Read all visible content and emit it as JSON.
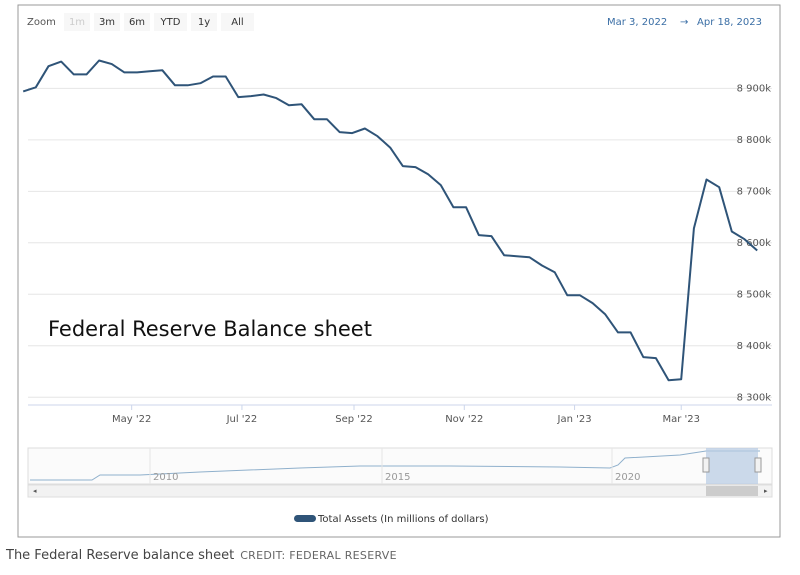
{
  "chart_data": {
    "type": "line",
    "annotation": "Federal Reserve Balance sheet",
    "zoom_label": "Zoom",
    "zoom_buttons": [
      "1m",
      "3m",
      "6m",
      "YTD",
      "1y",
      "All"
    ],
    "range_from": "Mar 3, 2022",
    "range_to": "Apr 18, 2023",
    "x": [
      "2022-03-02",
      "2022-03-09",
      "2022-03-16",
      "2022-03-23",
      "2022-03-30",
      "2022-04-06",
      "2022-04-13",
      "2022-04-20",
      "2022-04-27",
      "2022-05-04",
      "2022-05-11",
      "2022-05-18",
      "2022-05-25",
      "2022-06-01",
      "2022-06-08",
      "2022-06-15",
      "2022-06-22",
      "2022-06-29",
      "2022-07-06",
      "2022-07-13",
      "2022-07-20",
      "2022-07-27",
      "2022-08-03",
      "2022-08-10",
      "2022-08-17",
      "2022-08-24",
      "2022-08-31",
      "2022-09-07",
      "2022-09-14",
      "2022-09-21",
      "2022-09-28",
      "2022-10-05",
      "2022-10-12",
      "2022-10-19",
      "2022-10-26",
      "2022-11-02",
      "2022-11-09",
      "2022-11-16",
      "2022-11-23",
      "2022-11-30",
      "2022-12-07",
      "2022-12-14",
      "2022-12-21",
      "2022-12-28",
      "2023-01-04",
      "2023-01-11",
      "2023-01-18",
      "2023-01-25",
      "2023-02-01",
      "2023-02-08",
      "2023-02-15",
      "2023-02-22",
      "2023-03-01",
      "2023-03-08",
      "2023-03-15",
      "2023-03-22",
      "2023-03-29",
      "2023-04-05",
      "2023-04-12"
    ],
    "series": [
      {
        "name": "Total Assets (In millions of dollars)",
        "color": "#2f5478",
        "values": [
          8894000,
          8902000,
          8943000,
          8952000,
          8927000,
          8927000,
          8954000,
          8947000,
          8931000,
          8931000,
          8933000,
          8935000,
          8906000,
          8906000,
          8910000,
          8923000,
          8923000,
          8883000,
          8885000,
          8888000,
          8881000,
          8867000,
          8869000,
          8840000,
          8840000,
          8815000,
          8813000,
          8822000,
          8807000,
          8785000,
          8749000,
          8747000,
          8733000,
          8712000,
          8669000,
          8669000,
          8615000,
          8613000,
          8576000,
          8574000,
          8572000,
          8556000,
          8543000,
          8498000,
          8498000,
          8483000,
          8461000,
          8426000,
          8426000,
          8378000,
          8376000,
          8333000,
          8335000,
          8628000,
          8723000,
          8708000,
          8622000,
          8607000,
          8585000
        ]
      }
    ],
    "xlim": [
      "2022-03-03",
      "2023-04-18"
    ],
    "xticks": [
      {
        "value": "2022-05-01",
        "label": "May '22"
      },
      {
        "value": "2022-07-01",
        "label": "Jul '22"
      },
      {
        "value": "2022-09-01",
        "label": "Sep '22"
      },
      {
        "value": "2022-11-01",
        "label": "Nov '22"
      },
      {
        "value": "2023-01-01",
        "label": "Jan '23"
      },
      {
        "value": "2023-03-01",
        "label": "Mar '23"
      }
    ],
    "ylim": [
      8285000,
      8990000
    ],
    "yticks": [
      {
        "value": 8300000,
        "label": "8 300k"
      },
      {
        "value": 8400000,
        "label": "8 400k"
      },
      {
        "value": 8500000,
        "label": "8 500k"
      },
      {
        "value": 8600000,
        "label": "8 600k"
      },
      {
        "value": 8700000,
        "label": "8 700k"
      },
      {
        "value": 8800000,
        "label": "8 800k"
      },
      {
        "value": 8900000,
        "label": "8 900k"
      }
    ],
    "grid": true,
    "navigator_labels": [
      "2010",
      "2015",
      "2020"
    ]
  },
  "caption": {
    "text": "The Federal Reserve balance sheet",
    "credit": "CREDIT: FEDERAL RESERVE"
  }
}
